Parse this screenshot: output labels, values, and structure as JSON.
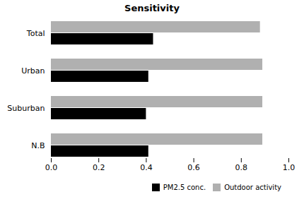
{
  "chart_data": {
    "type": "bar",
    "orientation": "horizontal",
    "title": "Sensitivity",
    "categories": [
      "N.B",
      "Suburban",
      "Urban",
      "Total"
    ],
    "series": [
      {
        "name": "PM2.5 conc.",
        "color": "#000000",
        "values": [
          0.41,
          0.4,
          0.41,
          0.43
        ]
      },
      {
        "name": "Outdoor activity",
        "color": "#b0b0b0",
        "values": [
          0.89,
          0.89,
          0.89,
          0.88
        ]
      }
    ],
    "xlim": [
      0.0,
      1.0
    ],
    "xticks": [
      {
        "value": 0,
        "label": "0.0"
      },
      0.2,
      0.4,
      0.6,
      0.8,
      {
        "value": 1,
        "label": "1.0"
      }
    ],
    "legend": "lower right"
  }
}
